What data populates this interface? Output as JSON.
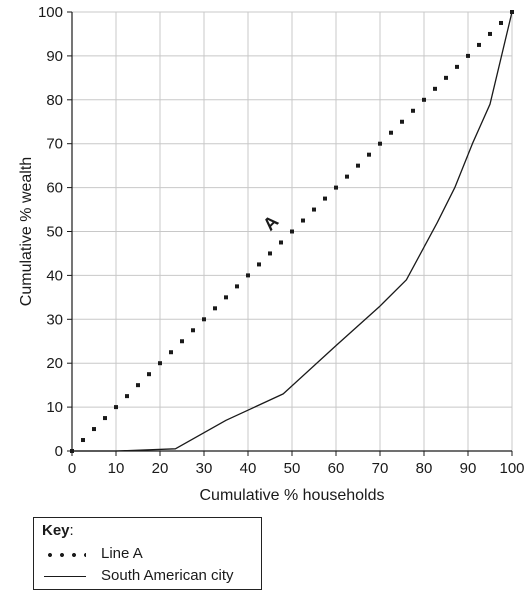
{
  "chart_data": {
    "type": "line",
    "xlabel": "Cumulative % households",
    "ylabel": "Cumulative % wealth",
    "xlim": [
      0,
      100
    ],
    "ylim": [
      0,
      100
    ],
    "x_ticks": [
      0,
      10,
      20,
      30,
      40,
      50,
      60,
      70,
      80,
      90,
      100
    ],
    "y_ticks": [
      0,
      10,
      20,
      30,
      40,
      50,
      60,
      70,
      80,
      90,
      100
    ],
    "grid": true,
    "annotation": "A",
    "series": [
      {
        "name": "Line A",
        "style": "dotted",
        "color": "#1a1a1a",
        "x": [
          0,
          2.5,
          5,
          7.5,
          10,
          12.5,
          15,
          17.5,
          20,
          22.5,
          25,
          27.5,
          30,
          32.5,
          35,
          37.5,
          40,
          42.5,
          45,
          47.5,
          50,
          52.5,
          55,
          57.5,
          60,
          62.5,
          65,
          67.5,
          70,
          72.5,
          75,
          77.5,
          80,
          82.5,
          85,
          87.5,
          90,
          92.5,
          95,
          97.5,
          100
        ],
        "y": [
          0,
          2.5,
          5,
          7.5,
          10,
          12.5,
          15,
          17.5,
          20,
          22.5,
          25,
          27.5,
          30,
          32.5,
          35,
          37.5,
          40,
          42.5,
          45,
          47.5,
          50,
          52.5,
          55,
          57.5,
          60,
          62.5,
          65,
          67.5,
          70,
          72.5,
          75,
          77.5,
          80,
          82.5,
          85,
          87.5,
          90,
          92.5,
          95,
          97.5,
          100
        ]
      },
      {
        "name": "South American city",
        "style": "solid",
        "color": "#1a1a1a",
        "x": [
          0,
          10,
          23.5,
          35,
          48,
          60,
          70,
          76,
          83,
          87,
          91,
          95,
          100
        ],
        "y": [
          0,
          0,
          0.5,
          7,
          13,
          24,
          33,
          39,
          52,
          60,
          70,
          79,
          100
        ]
      }
    ]
  },
  "key": {
    "title": "Key",
    "items": [
      {
        "label": "Line A"
      },
      {
        "label": "South American city"
      }
    ]
  }
}
